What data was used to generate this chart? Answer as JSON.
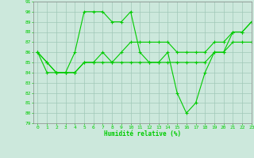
{
  "xlabel": "Humidité relative (%)",
  "ylim": [
    79,
    91
  ],
  "xlim": [
    -0.5,
    23
  ],
  "yticks": [
    79,
    80,
    81,
    82,
    83,
    84,
    85,
    86,
    87,
    88,
    89,
    90,
    91
  ],
  "xticks": [
    0,
    1,
    2,
    3,
    4,
    5,
    6,
    7,
    8,
    9,
    10,
    11,
    12,
    13,
    14,
    15,
    16,
    17,
    18,
    19,
    20,
    21,
    22,
    23
  ],
  "line_color": "#00cc00",
  "bg_color": "#cce8dc",
  "grid_color": "#a0c8b8",
  "line1_x": [
    0,
    1,
    2,
    3,
    4,
    5,
    6,
    7,
    8,
    9,
    10,
    11,
    12,
    13,
    14,
    15,
    16,
    17,
    18,
    19,
    20,
    21,
    22,
    23
  ],
  "line1_y": [
    86,
    84,
    84,
    84,
    86,
    90,
    90,
    90,
    89,
    89,
    90,
    86,
    85,
    85,
    86,
    82,
    80,
    81,
    84,
    86,
    86,
    88,
    88,
    89
  ],
  "line2_x": [
    0,
    1,
    2,
    3,
    4,
    5,
    6,
    7,
    8,
    9,
    10,
    11,
    12,
    13,
    14,
    15,
    16,
    17,
    18,
    19,
    20,
    21,
    22,
    23
  ],
  "line2_y": [
    86,
    85,
    84,
    84,
    84,
    85,
    85,
    85,
    85,
    85,
    85,
    85,
    85,
    85,
    85,
    85,
    85,
    85,
    85,
    86,
    86,
    87,
    87,
    87
  ],
  "line3_x": [
    0,
    1,
    2,
    3,
    4,
    5,
    6,
    7,
    8,
    9,
    10,
    11,
    12,
    13,
    14,
    15,
    16,
    17,
    18,
    19,
    20,
    21,
    22,
    23
  ],
  "line3_y": [
    86,
    85,
    84,
    84,
    84,
    85,
    85,
    86,
    85,
    86,
    87,
    87,
    87,
    87,
    87,
    86,
    86,
    86,
    86,
    87,
    87,
    88,
    88,
    89
  ]
}
